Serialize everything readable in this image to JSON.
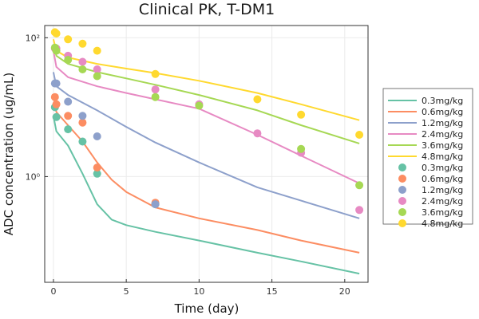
{
  "chart_data": {
    "type": "line",
    "title": "Clinical PK, T-DM1",
    "xlabel": "Time (day)",
    "ylabel": "ADC concentration (ug/mL)",
    "y_scale": "log10",
    "xlim": [
      -0.6,
      21.6
    ],
    "ylim": [
      0.03,
      150
    ],
    "x_ticks": [
      0,
      5,
      10,
      15,
      20
    ],
    "x_tick_labels": [
      "0",
      "5",
      "10",
      "15",
      "20"
    ],
    "y_ticks": [
      1,
      100
    ],
    "y_tick_labels": [
      "10⁰",
      "10²"
    ],
    "grid": true,
    "legend_position": "right",
    "colors": {
      "0.3mg/kg": "#66c2a5",
      "0.6mg/kg": "#fc8d62",
      "1.2mg/kg": "#8da0cb",
      "2.4mg/kg": "#e78ac3",
      "3.6mg/kg": "#a6d854",
      "4.8mg/kg": "#ffd92f"
    },
    "line_series": [
      {
        "name": "0.3mg/kg",
        "x": [
          0,
          0.2,
          1,
          2,
          3,
          4,
          5,
          7,
          10,
          14,
          17,
          21
        ],
        "y": [
          7.5,
          4.5,
          2.8,
          1.1,
          0.4,
          0.24,
          0.2,
          0.16,
          0.12,
          0.08,
          0.06,
          0.04
        ]
      },
      {
        "name": "0.6mg/kg",
        "x": [
          0,
          0.2,
          1,
          2,
          3,
          4,
          5,
          7,
          10,
          14,
          17,
          21
        ],
        "y": [
          15,
          8.5,
          5.5,
          3.2,
          1.6,
          0.9,
          0.6,
          0.36,
          0.25,
          0.17,
          0.12,
          0.08
        ]
      },
      {
        "name": "1.2mg/kg",
        "x": [
          0,
          0.2,
          1,
          3,
          5,
          7,
          10,
          14,
          17,
          21
        ],
        "y": [
          32,
          20,
          15,
          9,
          5.2,
          3.1,
          1.6,
          0.7,
          0.45,
          0.25
        ]
      },
      {
        "name": "2.4mg/kg",
        "x": [
          0,
          0.2,
          1,
          3,
          5,
          7,
          10,
          14,
          17,
          21
        ],
        "y": [
          65,
          38,
          27,
          20,
          16,
          13,
          9.5,
          4,
          2,
          0.8
        ]
      },
      {
        "name": "3.6mg/kg",
        "x": [
          0,
          0.2,
          1,
          3,
          5,
          7,
          10,
          14,
          17,
          21
        ],
        "y": [
          80,
          55,
          42,
          32,
          26,
          21,
          15,
          9,
          5.5,
          3
        ]
      },
      {
        "name": "4.8mg/kg",
        "x": [
          0,
          0.2,
          1,
          3,
          5,
          7,
          10,
          14,
          17,
          21
        ],
        "y": [
          95,
          65,
          52,
          42,
          36,
          31,
          24,
          16,
          11,
          6.5
        ]
      }
    ],
    "scatter_series": [
      {
        "name": "0.3mg/kg",
        "x": [
          0.1,
          0.2,
          1,
          2,
          3,
          7
        ],
        "y": [
          10,
          7.2,
          4.8,
          3.2,
          1.1,
          0.4
        ]
      },
      {
        "name": "0.6mg/kg",
        "x": [
          0.1,
          0.2,
          1,
          2,
          3,
          7
        ],
        "y": [
          14,
          11,
          7.5,
          6,
          1.35,
          0.42
        ]
      },
      {
        "name": "1.2mg/kg",
        "x": [
          0.1,
          0.2,
          1,
          2,
          3,
          7
        ],
        "y": [
          22,
          22,
          12,
          7.5,
          3.8,
          0.4
        ]
      },
      {
        "name": "2.4mg/kg",
        "x": [
          0.1,
          0.2,
          1,
          2,
          3,
          7,
          10,
          14,
          17,
          21
        ],
        "y": [
          70,
          70,
          55,
          45,
          35,
          18,
          11,
          4.2,
          2.2,
          0.33
        ]
      },
      {
        "name": "3.6mg/kg",
        "x": [
          0.1,
          0.2,
          1,
          2,
          3,
          7,
          10,
          17,
          21
        ],
        "y": [
          72,
          65,
          48,
          35,
          28,
          14,
          10.5,
          2.5,
          0.75
        ]
      },
      {
        "name": "4.8mg/kg",
        "x": [
          0.1,
          0.2,
          1,
          2,
          3,
          7,
          14,
          17,
          21
        ],
        "y": [
          120,
          115,
          95,
          82,
          65,
          30,
          13,
          7.8,
          4
        ]
      }
    ]
  }
}
